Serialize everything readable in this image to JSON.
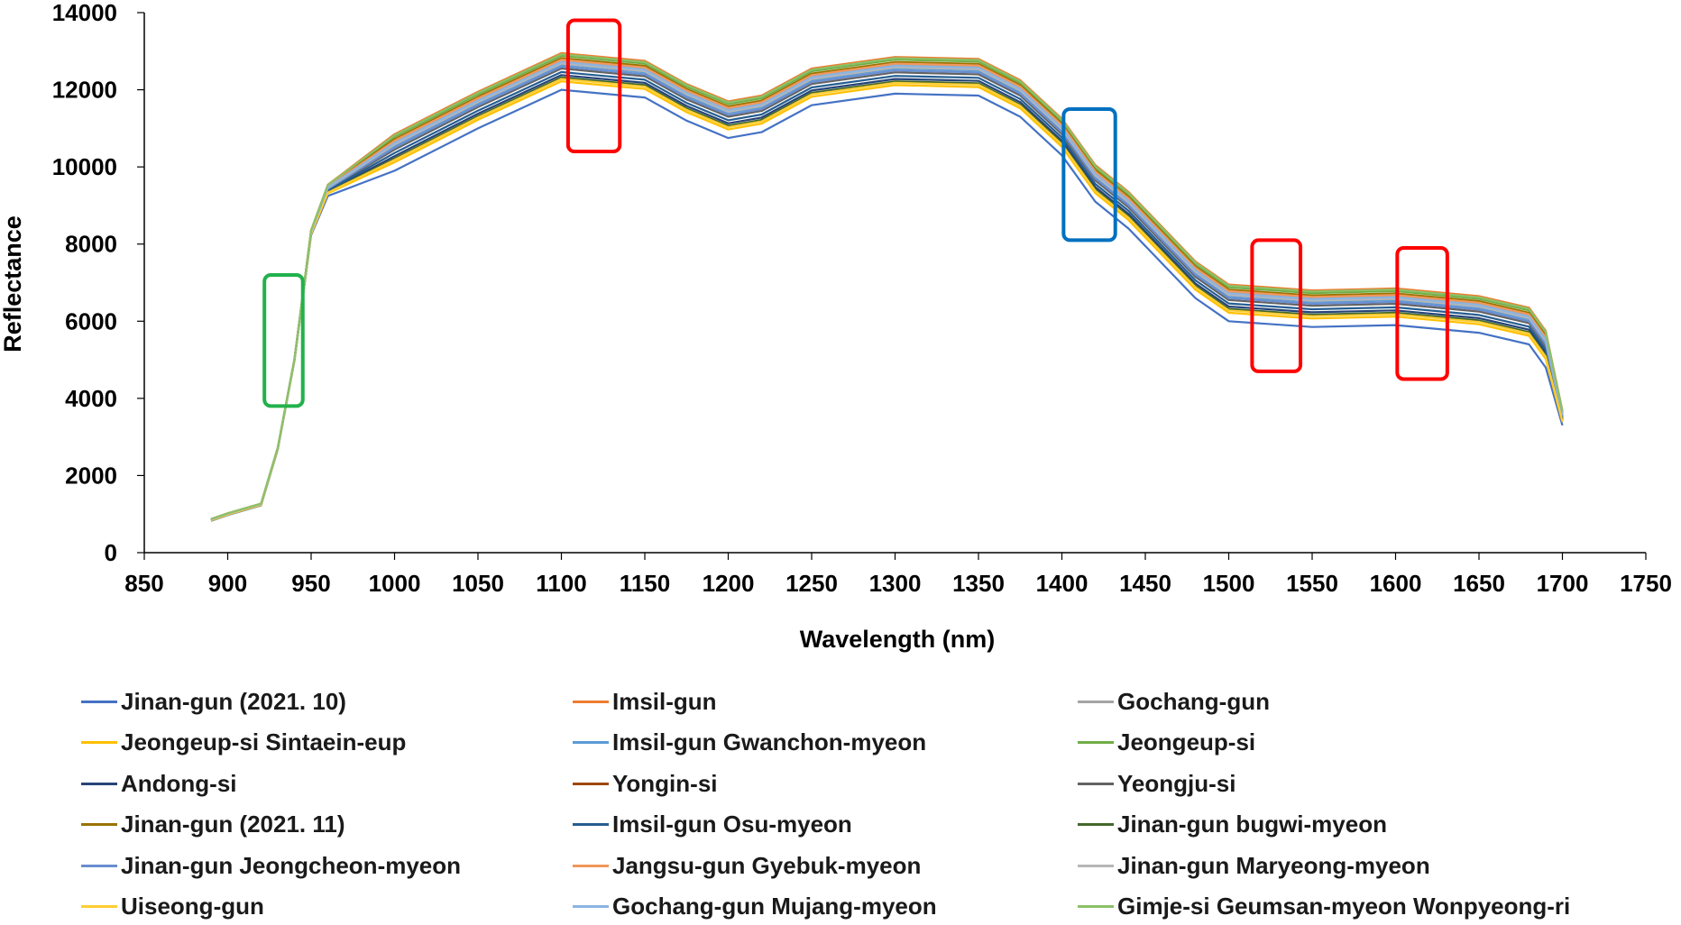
{
  "chart_data": {
    "type": "line",
    "xlabel": "Wavelength (nm)",
    "ylabel": "Reflectance",
    "xlim": [
      850,
      1750
    ],
    "ylim": [
      0,
      14000
    ],
    "xticks": [
      "850",
      "900",
      "950",
      "1000",
      "1050",
      "1100",
      "1150",
      "1200",
      "1250",
      "1300",
      "1350",
      "1400",
      "1450",
      "1500",
      "1550",
      "1600",
      "1650",
      "1700",
      "1750"
    ],
    "yticks": [
      "0",
      "2000",
      "4000",
      "6000",
      "8000",
      "10000",
      "12000",
      "14000"
    ],
    "grid": false,
    "legend_position": "bottom",
    "x": [
      890,
      900,
      920,
      930,
      940,
      950,
      960,
      980,
      1000,
      1050,
      1100,
      1150,
      1175,
      1200,
      1220,
      1250,
      1300,
      1350,
      1375,
      1400,
      1420,
      1440,
      1460,
      1480,
      1500,
      1550,
      1600,
      1650,
      1680,
      1690,
      1700
    ],
    "base_values": [
      850,
      1000,
      1250,
      2700,
      5000,
      8300,
      9400,
      9900,
      10400,
      11500,
      12500,
      12300,
      11700,
      11250,
      11400,
      12100,
      12400,
      12350,
      11800,
      10800,
      9600,
      8900,
      8000,
      7100,
      6500,
      6350,
      6400,
      6200,
      5900,
      5300,
      3500
    ],
    "series": [
      {
        "name": "Jinan-gun (2021. 10)",
        "color": "#4472C4",
        "offset": -500
      },
      {
        "name": "Imsil-gun",
        "color": "#ED7D31",
        "offset": 450
      },
      {
        "name": "Gochang-gun",
        "color": "#A5A5A5",
        "offset": 250
      },
      {
        "name": "Jeongeup-si Sintaein-eup",
        "color": "#FFC000",
        "offset": -280
      },
      {
        "name": "Imsil-gun Gwanchon-myeon",
        "color": "#5B9BD5",
        "offset": 150
      },
      {
        "name": "Jeongeup-si",
        "color": "#70AD47",
        "offset": 380
      },
      {
        "name": "Andong-si",
        "color": "#264478",
        "offset": -120
      },
      {
        "name": "Yongin-si",
        "color": "#9E480E",
        "offset": 200
      },
      {
        "name": "Yeongju-si",
        "color": "#636363",
        "offset": 50
      },
      {
        "name": "Jinan-gun (2021. 11)",
        "color": "#997300",
        "offset": 320
      },
      {
        "name": "Imsil-gun Osu-myeon",
        "color": "#255E91",
        "offset": -40
      },
      {
        "name": "Jinan-gun bugwi-myeon",
        "color": "#43682B",
        "offset": -180
      },
      {
        "name": "Jinan-gun Jeongcheon-myeon",
        "color": "#698ED0",
        "offset": 100
      },
      {
        "name": "Jangsu-gun Gyebuk-myeon",
        "color": "#F1975A",
        "offset": 280
      },
      {
        "name": "Jinan-gun Maryeong-myeon",
        "color": "#B7B7B7",
        "offset": 180
      },
      {
        "name": "Uiseong-gun",
        "color": "#FFCD33",
        "offset": -220
      },
      {
        "name": "Gochang-gun Mujang-myeon",
        "color": "#8CB4E1",
        "offset": 220
      },
      {
        "name": "Gimje-si Geumsan-myeon Wonpyeong-ri",
        "color": "#8CC168",
        "offset": 420
      }
    ],
    "annotations": [
      {
        "shape": "rounded-rect",
        "color": "#22B14C",
        "x_range": [
          922,
          945
        ],
        "y_range": [
          3800,
          7200
        ]
      },
      {
        "shape": "rounded-rect",
        "color": "#FF0000",
        "x_range": [
          1104,
          1135
        ],
        "y_range": [
          10400,
          13800
        ]
      },
      {
        "shape": "rounded-rect",
        "color": "#0070C0",
        "x_range": [
          1401,
          1432
        ],
        "y_range": [
          8100,
          11500
        ]
      },
      {
        "shape": "rounded-rect",
        "color": "#FF0000",
        "x_range": [
          1514,
          1543
        ],
        "y_range": [
          4700,
          8100
        ]
      },
      {
        "shape": "rounded-rect",
        "color": "#FF0000",
        "x_range": [
          1601,
          1631
        ],
        "y_range": [
          4500,
          7900
        ]
      }
    ]
  }
}
